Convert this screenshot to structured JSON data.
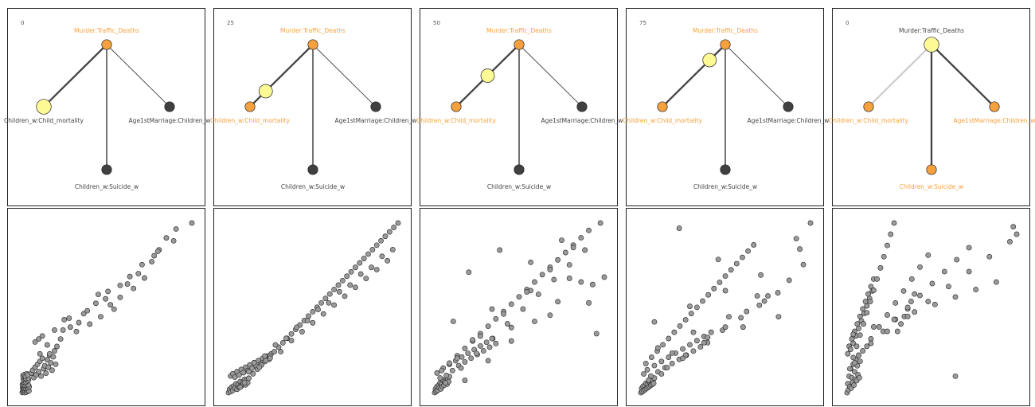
{
  "colors": {
    "highlight": "#f7a13e",
    "text": "#444444",
    "node_dark": "#404040",
    "node_pale": "#fdf994",
    "edge_dark": "#444444",
    "edge_faint": "#cccccc",
    "point_fill": "#9a9a9a",
    "point_stroke": "#222222"
  },
  "graphs": [
    {
      "step": "0",
      "labels": {
        "top": "Murder:Traffic_Deaths",
        "left": "Children_w:Child_mortality",
        "right": "Age1stMarriage:Children_w",
        "bottom": "Children_w:Suicide_w"
      },
      "label_colors": {
        "top": "#f7a13e",
        "left": "#444444",
        "right": "#444444",
        "bottom": "#444444"
      },
      "nodes": {
        "top": "highlight",
        "left": "pale",
        "right": "dark",
        "bottom": "dark"
      },
      "edges": {
        "left": "bold",
        "right": "thin",
        "bottom": "medium"
      },
      "pulse": null
    },
    {
      "step": "25",
      "labels": {
        "top": "Murder:Traffic_Deaths",
        "left": "Children_w:Child_mortality",
        "right": "Age1stMarriage:Children_w",
        "bottom": "Children_w:Suicide_w"
      },
      "label_colors": {
        "top": "#f7a13e",
        "left": "#f7a13e",
        "right": "#444444",
        "bottom": "#444444"
      },
      "nodes": {
        "top": "highlight",
        "left": "highlight",
        "right": "dark",
        "bottom": "dark"
      },
      "edges": {
        "left": "bold",
        "right": "thin",
        "bottom": "medium"
      },
      "pulse": 0.75
    },
    {
      "step": "50",
      "labels": {
        "top": "Murder:Traffic_Deaths",
        "left": "Children_w:Child_mortality",
        "right": "Age1stMarriage:Children_w",
        "bottom": "Children_w:Suicide_w"
      },
      "label_colors": {
        "top": "#f7a13e",
        "left": "#f7a13e",
        "right": "#444444",
        "bottom": "#444444"
      },
      "nodes": {
        "top": "highlight",
        "left": "highlight",
        "right": "dark",
        "bottom": "dark"
      },
      "edges": {
        "left": "bold",
        "right": "thin",
        "bottom": "medium"
      },
      "pulse": 0.5
    },
    {
      "step": "75",
      "labels": {
        "top": "Murder:Traffic_Deaths",
        "left": "Children_w:Child_mortality",
        "right": "Age1stMarriage:Children_w",
        "bottom": "Children_w:Suicide_w"
      },
      "label_colors": {
        "top": "#f7a13e",
        "left": "#f7a13e",
        "right": "#444444",
        "bottom": "#444444"
      },
      "nodes": {
        "top": "highlight",
        "left": "highlight",
        "right": "dark",
        "bottom": "dark"
      },
      "edges": {
        "left": "bold",
        "right": "thin",
        "bottom": "medium"
      },
      "pulse": 0.25
    },
    {
      "step": "0",
      "labels": {
        "top": "Murder:Traffic_Deaths",
        "left": "Children_w:Child_mortality",
        "right": "Age1stMarriage:Children_w",
        "bottom": "Children_w:Suicide_w"
      },
      "label_colors": {
        "top": "#444444",
        "left": "#f7a13e",
        "right": "#f7a13e",
        "bottom": "#f7a13e"
      },
      "nodes": {
        "top": "pale",
        "left": "highlight",
        "right": "highlight",
        "bottom": "highlight"
      },
      "edges": {
        "left": "faint",
        "right": "bold",
        "bottom": "bold"
      },
      "pulse": null
    }
  ],
  "chart_data": [
    {
      "type": "scatter",
      "x": [
        1.5,
        2.0,
        2.5,
        3.0,
        3.5,
        4.0,
        4.5,
        5.0,
        5.5,
        6.0,
        6.5,
        7.0,
        1.8,
        2.2,
        2.8,
        3.2,
        3.8,
        4.2,
        4.8,
        5.2,
        5.8,
        6.2,
        6.8,
        7.2,
        1.6,
        2.4,
        3.4,
        4.4,
        5.4,
        6.4,
        2.6,
        3.6,
        4.6,
        5.6,
        6.6,
        2.3,
        3.3,
        4.3,
        5.3,
        6.3,
        2.1,
        3.1,
        4.1,
        5.1,
        6.1,
        9,
        10,
        11,
        12,
        13,
        14,
        15,
        16,
        17,
        18,
        19,
        20,
        21,
        22,
        23,
        24,
        25,
        26,
        27,
        28,
        29,
        30,
        12,
        18,
        24,
        28,
        33,
        36,
        41,
        46,
        52,
        57,
        62,
        66,
        72,
        77,
        82,
        88,
        93,
        97,
        102,
        108,
        114,
        120,
        16,
        35,
        55,
        70,
        82,
        100,
        113,
        126,
        141,
        22,
        48,
        74,
        90,
        110,
        128,
        15,
        40,
        64
      ],
      "y": [
        2.0,
        3.5,
        2.8,
        4.1,
        1.9,
        3.0,
        4.6,
        2.3,
        3.8,
        2.9,
        4.2,
        3.1,
        5.2,
        6.0,
        4.9,
        5.6,
        6.3,
        5.0,
        6.8,
        5.7,
        6.1,
        5.3,
        6.6,
        5.9,
        7.4,
        8.1,
        7.0,
        7.8,
        8.6,
        7.2,
        9.3,
        10.1,
        9.0,
        9.8,
        10.4,
        11.2,
        12.0,
        11.5,
        12.6,
        11.8,
        13.4,
        14.0,
        13.1,
        14.7,
        13.8,
        15,
        17,
        12,
        19,
        14,
        21,
        16,
        23,
        13,
        25,
        18,
        20,
        15,
        24,
        19,
        27,
        22,
        17,
        26,
        30,
        21,
        33,
        36,
        40,
        28,
        44,
        38,
        51,
        46,
        43,
        55,
        48,
        62,
        53,
        70,
        58,
        66,
        75,
        72,
        82,
        79,
        90,
        98,
        106,
        28,
        44,
        57,
        65,
        74,
        88,
        97,
        104,
        116,
        34,
        49,
        61,
        80,
        94,
        112,
        38,
        52,
        68
      ]
    },
    {
      "type": "scatter",
      "x": [
        1,
        2,
        3,
        4,
        5,
        6,
        7,
        8,
        9,
        10,
        11,
        12,
        13,
        14,
        15,
        16,
        17,
        18,
        19,
        20,
        3,
        5,
        7,
        9,
        11,
        13,
        15,
        17,
        19,
        21,
        23,
        25,
        27,
        29,
        31,
        33,
        35,
        37,
        39,
        41,
        12,
        16,
        20,
        24,
        28,
        32,
        36,
        40,
        44,
        48,
        52,
        56,
        60,
        64,
        68,
        72,
        76,
        80,
        84,
        88,
        92,
        96,
        100,
        104,
        108,
        112,
        116,
        120,
        124,
        128,
        132,
        136,
        140,
        144,
        148,
        152,
        156,
        160,
        20,
        30,
        40,
        50,
        60,
        70,
        80,
        90,
        100,
        110,
        120,
        130,
        140,
        150,
        25,
        45,
        65,
        85,
        105,
        125,
        145,
        35,
        55,
        75,
        95,
        115,
        135,
        155
      ],
      "y": [
        3,
        6,
        4,
        8,
        5,
        9,
        7,
        11,
        6,
        10,
        8,
        13,
        9,
        12,
        11,
        15,
        10,
        14,
        12,
        16,
        18,
        20,
        17,
        22,
        19,
        24,
        21,
        26,
        23,
        28,
        25,
        30,
        27,
        32,
        29,
        34,
        31,
        36,
        33,
        38,
        8,
        12,
        16,
        20,
        24,
        28,
        32,
        36,
        40,
        44,
        48,
        52,
        56,
        60,
        64,
        68,
        72,
        76,
        80,
        84,
        88,
        92,
        96,
        100,
        104,
        108,
        112,
        116,
        120,
        124,
        128,
        132,
        136,
        140,
        144,
        148,
        152,
        156,
        22,
        26,
        34,
        40,
        50,
        58,
        66,
        74,
        82,
        90,
        98,
        106,
        114,
        122,
        30,
        46,
        62,
        78,
        94,
        110,
        126,
        36,
        52,
        68,
        84,
        100,
        116,
        132
      ]
    },
    {
      "type": "scatter",
      "x": [
        1,
        2,
        3,
        4,
        5,
        6,
        7,
        8,
        9,
        10,
        11,
        12,
        13,
        14,
        15,
        16,
        17,
        18,
        19,
        20,
        4,
        8,
        12,
        16,
        20,
        24,
        28,
        32,
        36,
        40,
        44,
        48,
        52,
        56,
        60,
        64,
        68,
        72,
        76,
        80,
        10,
        20,
        30,
        40,
        50,
        60,
        70,
        80,
        90,
        100,
        110,
        120,
        130,
        140,
        150,
        160,
        170,
        180,
        190,
        200,
        15,
        35,
        55,
        75,
        95,
        115,
        135,
        155,
        175,
        195,
        25,
        50,
        75,
        100,
        125,
        150,
        175,
        200,
        30,
        60,
        90,
        120,
        150,
        180,
        40,
        70,
        100,
        130,
        160,
        190,
        45,
        85,
        125,
        165,
        205,
        210,
        215,
        220
      ],
      "y": [
        2,
        5,
        3,
        7,
        4,
        8,
        6,
        10,
        5,
        9,
        7,
        12,
        8,
        11,
        10,
        14,
        9,
        13,
        11,
        15,
        18,
        14,
        22,
        16,
        25,
        20,
        28,
        24,
        31,
        27,
        34,
        30,
        37,
        33,
        40,
        36,
        43,
        39,
        46,
        42,
        20,
        26,
        32,
        38,
        44,
        50,
        56,
        62,
        68,
        74,
        80,
        86,
        92,
        98,
        104,
        110,
        116,
        122,
        128,
        134,
        10,
        22,
        34,
        46,
        58,
        70,
        82,
        94,
        106,
        118,
        60,
        45,
        70,
        55,
        85,
        65,
        95,
        75,
        30,
        48,
        66,
        84,
        102,
        120,
        12,
        28,
        44,
        60,
        76,
        92,
        100,
        118,
        108,
        126,
        90,
        50,
        140,
        96
      ]
    },
    {
      "type": "scatter",
      "x": [
        1,
        2,
        3,
        4,
        5,
        6,
        7,
        8,
        9,
        10,
        11,
        12,
        13,
        14,
        15,
        16,
        17,
        18,
        19,
        20,
        5,
        10,
        15,
        20,
        25,
        30,
        35,
        40,
        45,
        50,
        55,
        60,
        65,
        70,
        75,
        80,
        85,
        90,
        95,
        100,
        8,
        16,
        24,
        32,
        40,
        48,
        56,
        64,
        72,
        80,
        88,
        96,
        104,
        112,
        120,
        128,
        136,
        144,
        152,
        160,
        20,
        45,
        70,
        95,
        120,
        145,
        170,
        195,
        12,
        38,
        64,
        90,
        116,
        142,
        168,
        194,
        30,
        60,
        90,
        120,
        150,
        180,
        210,
        230,
        55,
        110,
        165,
        220,
        25,
        75,
        125,
        175,
        225,
        240
      ],
      "y": [
        2,
        6,
        3,
        8,
        4,
        9,
        5,
        11,
        6,
        10,
        7,
        13,
        8,
        12,
        9,
        15,
        10,
        14,
        11,
        16,
        20,
        24,
        18,
        28,
        22,
        32,
        26,
        36,
        30,
        40,
        34,
        44,
        38,
        48,
        42,
        52,
        46,
        56,
        50,
        60,
        30,
        36,
        42,
        48,
        54,
        60,
        66,
        72,
        78,
        84,
        90,
        96,
        102,
        108,
        114,
        120,
        126,
        132,
        138,
        144,
        70,
        40,
        85,
        55,
        100,
        65,
        115,
        75,
        14,
        26,
        38,
        50,
        62,
        74,
        86,
        98,
        20,
        35,
        50,
        65,
        80,
        95,
        110,
        125,
        160,
        130,
        95,
        150,
        45,
        60,
        75,
        90,
        140,
        165
      ]
    },
    {
      "type": "scatter",
      "x": [
        1,
        2,
        3,
        4,
        5,
        6,
        7,
        8,
        9,
        10,
        11,
        12,
        13,
        14,
        15,
        16,
        17,
        18,
        19,
        20,
        2,
        4,
        6,
        8,
        10,
        12,
        14,
        16,
        18,
        20,
        22,
        24,
        26,
        28,
        30,
        32,
        34,
        36,
        38,
        40,
        5,
        10,
        15,
        20,
        25,
        30,
        35,
        40,
        45,
        50,
        55,
        60,
        65,
        70,
        75,
        80,
        85,
        90,
        95,
        100,
        12,
        24,
        36,
        48,
        60,
        72,
        84,
        96,
        108,
        120,
        18,
        36,
        54,
        72,
        90,
        108,
        126,
        144,
        162,
        180,
        30,
        60,
        90,
        120,
        150,
        180,
        210,
        240,
        10,
        40,
        70,
        100,
        130,
        160,
        190,
        220,
        245,
        250,
        160
      ],
      "y": [
        8,
        20,
        12,
        30,
        16,
        40,
        14,
        28,
        22,
        46,
        18,
        36,
        26,
        52,
        24,
        44,
        32,
        58,
        28,
        50,
        60,
        70,
        66,
        80,
        74,
        90,
        84,
        100,
        94,
        110,
        104,
        120,
        114,
        130,
        124,
        140,
        134,
        150,
        144,
        160,
        40,
        55,
        70,
        85,
        100,
        115,
        130,
        145,
        160,
        175,
        190,
        205,
        220,
        235,
        90,
        100,
        110,
        120,
        130,
        140,
        48,
        64,
        80,
        96,
        112,
        128,
        144,
        160,
        176,
        192,
        58,
        74,
        90,
        106,
        122,
        138,
        154,
        170,
        186,
        202,
        70,
        90,
        110,
        130,
        150,
        170,
        190,
        210,
        86,
        96,
        106,
        116,
        126,
        136,
        146,
        156,
        230,
        220,
        30
      ]
    }
  ]
}
